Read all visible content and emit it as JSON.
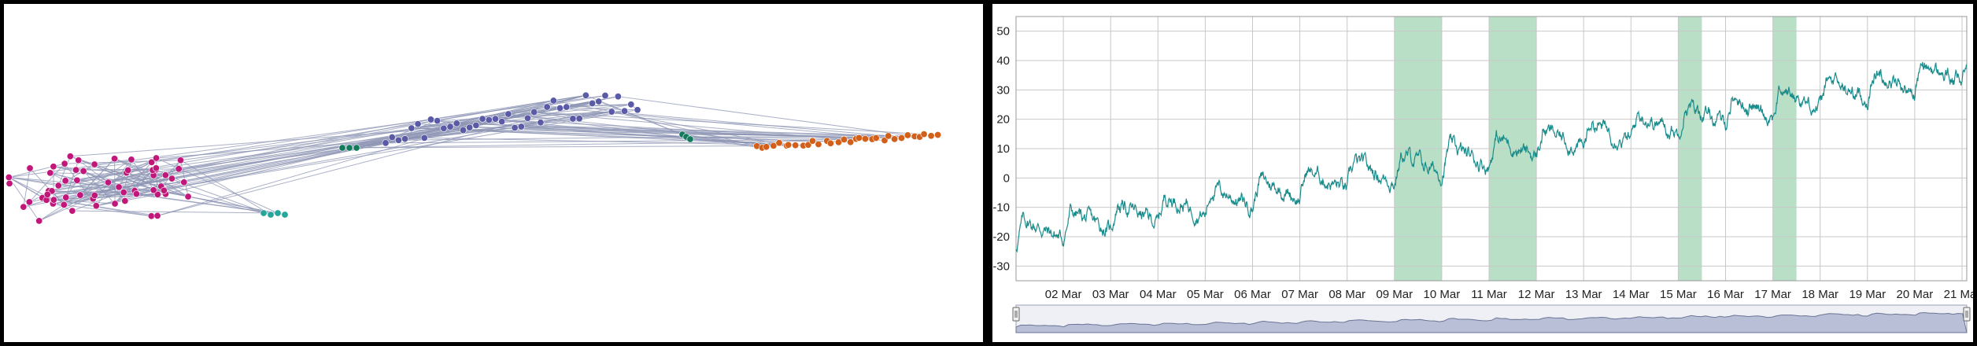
{
  "network": {
    "type": "network",
    "node_groups": [
      {
        "name": "pink",
        "color": "#c2177a",
        "count": 62
      },
      {
        "name": "teal",
        "color": "#26a69a",
        "count": 4
      },
      {
        "name": "dark-green",
        "color": "#147a5c",
        "count": 6
      },
      {
        "name": "purple",
        "color": "#5a5aa6",
        "count": 40
      },
      {
        "name": "orange",
        "color": "#d2601a",
        "count": 32
      }
    ],
    "edge_color": "#8e96b4"
  },
  "chart_data": {
    "type": "line",
    "series": [
      {
        "color": "#1a8c8c"
      }
    ],
    "ylim": [
      -35,
      55
    ],
    "yticks": [
      -30,
      -20,
      -10,
      0,
      10,
      20,
      30,
      40,
      50
    ],
    "xticks": [
      "02 Mar",
      "03 Mar",
      "04 Mar",
      "05 Mar",
      "06 Mar",
      "07 Mar",
      "08 Mar",
      "09 Mar",
      "10 Mar",
      "11 Mar",
      "12 Mar",
      "13 Mar",
      "14 Mar",
      "15 Mar",
      "16 Mar",
      "17 Mar",
      "18 Mar",
      "19 Mar",
      "20 Mar",
      "21 Mar"
    ],
    "x_start_day": 1.0,
    "x_end_day": 21.1,
    "highlight_bands": [
      [
        9.0,
        10.0
      ],
      [
        11.0,
        12.0
      ],
      [
        15.0,
        15.5
      ],
      [
        17.0,
        17.5
      ]
    ],
    "highlight_color": "#b9e0c6",
    "grid": true,
    "trend_start": -20,
    "trend_end": 36,
    "daily_amplitude": 9,
    "navigator": {
      "fill": "#b8bfd6",
      "line": "#6b7594"
    }
  }
}
